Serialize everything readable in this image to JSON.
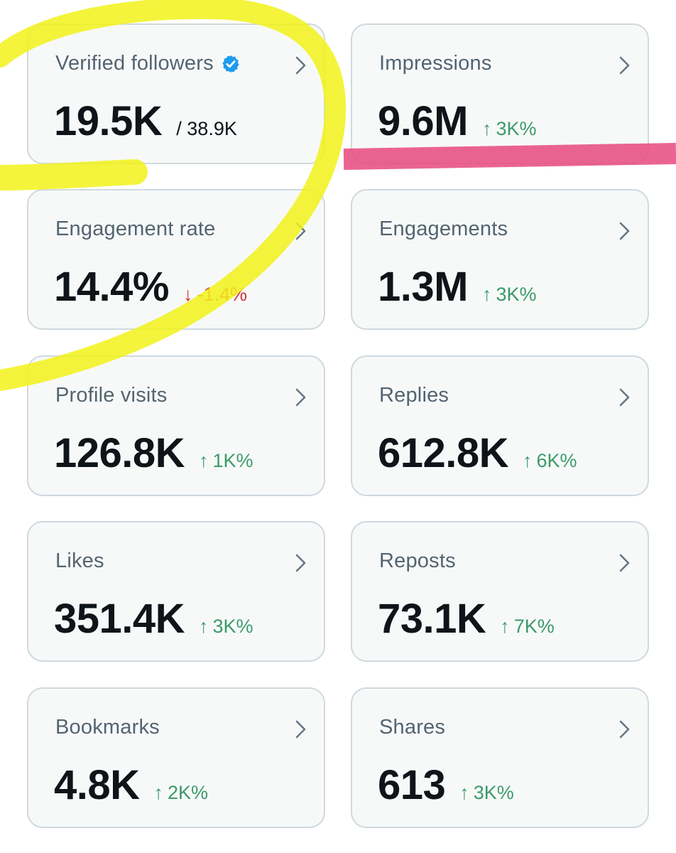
{
  "colors": {
    "positive": "#3d9a6a",
    "negative": "#d0343c",
    "verified_badge": "#1d9bf0",
    "highlight_yellow": "#f2f21a",
    "highlight_pink": "#e8497e"
  },
  "cards": [
    {
      "label": "Verified followers",
      "value": "19.5K",
      "total": "/ 38.9K",
      "badge": "verified-badge-icon"
    },
    {
      "label": "Impressions",
      "value": "9.6M",
      "change": "3K%",
      "direction": "up"
    },
    {
      "label": "Engagement rate",
      "value": "14.4%",
      "change": "-1.4%",
      "direction": "down"
    },
    {
      "label": "Engagements",
      "value": "1.3M",
      "change": "3K%",
      "direction": "up"
    },
    {
      "label": "Profile visits",
      "value": "126.8K",
      "change": "1K%",
      "direction": "up"
    },
    {
      "label": "Replies",
      "value": "612.8K",
      "change": "6K%",
      "direction": "up"
    },
    {
      "label": "Likes",
      "value": "351.4K",
      "change": "3K%",
      "direction": "up"
    },
    {
      "label": "Reposts",
      "value": "73.1K",
      "change": "7K%",
      "direction": "up"
    },
    {
      "label": "Bookmarks",
      "value": "4.8K",
      "change": "2K%",
      "direction": "up"
    },
    {
      "label": "Shares",
      "value": "613",
      "change": "3K%",
      "direction": "up"
    }
  ]
}
